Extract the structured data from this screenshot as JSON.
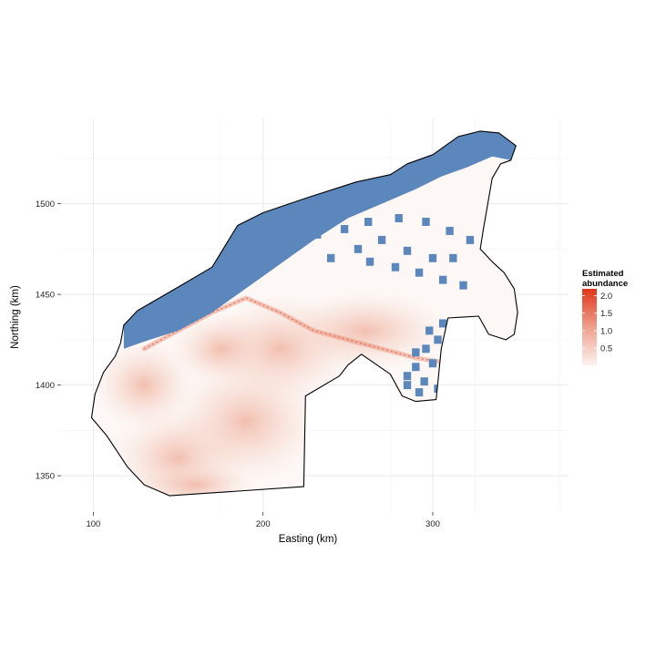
{
  "chart_data": {
    "type": "heatmap",
    "title": "",
    "xlabel": "Easting (km)",
    "ylabel": "Northing (km)",
    "xlim": [
      81,
      380
    ],
    "ylim": [
      1330,
      1547
    ],
    "x_ticks": [
      100,
      200,
      300
    ],
    "y_ticks": [
      1350,
      1400,
      1450,
      1500
    ],
    "x_tick_labels": [
      "100",
      "200",
      "300"
    ],
    "y_tick_labels": [
      "1350",
      "1400",
      "1450",
      "1500"
    ],
    "grid": true,
    "legend": {
      "title_line1": "Estimated",
      "title_line2": "abundance",
      "position": "right",
      "breaks": [
        2.0,
        1.5,
        1.0,
        0.5
      ],
      "labels": [
        "2.0",
        "1.5",
        "1.0",
        "0.5"
      ],
      "range": [
        0,
        2.2
      ],
      "low_color": "#fbf3f0",
      "high_color": "#e03519"
    },
    "no_data_color": "#5b87bc",
    "boundary_color": "#000000",
    "study_region_boundary": [
      [
        118,
        1433
      ],
      [
        126,
        1441
      ],
      [
        150,
        1454
      ],
      [
        170,
        1465
      ],
      [
        185,
        1488
      ],
      [
        200,
        1495
      ],
      [
        225,
        1503
      ],
      [
        255,
        1512
      ],
      [
        275,
        1516
      ],
      [
        285,
        1522
      ],
      [
        300,
        1527
      ],
      [
        315,
        1537
      ],
      [
        328,
        1540
      ],
      [
        339,
        1539
      ],
      [
        349,
        1532
      ],
      [
        346,
        1524
      ],
      [
        340,
        1522
      ],
      [
        335,
        1514
      ],
      [
        330,
        1487
      ],
      [
        328,
        1475
      ],
      [
        335,
        1468
      ],
      [
        342,
        1462
      ],
      [
        348,
        1453
      ],
      [
        350,
        1440
      ],
      [
        348,
        1428
      ],
      [
        343,
        1425
      ],
      [
        333,
        1428
      ],
      [
        327,
        1438
      ],
      [
        309,
        1437
      ],
      [
        305,
        1420
      ],
      [
        302,
        1392
      ],
      [
        290,
        1391
      ],
      [
        282,
        1394
      ],
      [
        275,
        1406
      ],
      [
        258,
        1417
      ],
      [
        250,
        1411
      ],
      [
        245,
        1405
      ],
      [
        225,
        1394
      ],
      [
        224,
        1344
      ],
      [
        145,
        1339
      ],
      [
        130,
        1345
      ],
      [
        120,
        1355
      ],
      [
        108,
        1372
      ],
      [
        99,
        1382
      ],
      [
        101,
        1395
      ],
      [
        106,
        1407
      ],
      [
        113,
        1416
      ],
      [
        116,
        1423
      ],
      [
        118,
        1433
      ]
    ],
    "high_abundance_ridge": [
      [
        130,
        1420
      ],
      [
        150,
        1430
      ],
      [
        170,
        1440
      ],
      [
        190,
        1448
      ],
      [
        210,
        1440
      ],
      [
        230,
        1430
      ],
      [
        250,
        1425
      ],
      [
        270,
        1420
      ],
      [
        290,
        1415
      ],
      [
        310,
        1412
      ]
    ],
    "no_data_zones": [
      {
        "region": "northwest coast",
        "polygon": [
          [
            118,
            1433
          ],
          [
            126,
            1441
          ],
          [
            150,
            1454
          ],
          [
            170,
            1465
          ],
          [
            185,
            1488
          ],
          [
            200,
            1495
          ],
          [
            225,
            1503
          ],
          [
            255,
            1512
          ],
          [
            275,
            1516
          ],
          [
            285,
            1522
          ],
          [
            300,
            1527
          ],
          [
            315,
            1537
          ],
          [
            328,
            1540
          ],
          [
            339,
            1539
          ],
          [
            349,
            1532
          ],
          [
            346,
            1524
          ],
          [
            335,
            1526
          ],
          [
            320,
            1520
          ],
          [
            305,
            1515
          ],
          [
            290,
            1508
          ],
          [
            270,
            1500
          ],
          [
            250,
            1492
          ],
          [
            230,
            1480
          ],
          [
            215,
            1470
          ],
          [
            200,
            1460
          ],
          [
            185,
            1450
          ],
          [
            170,
            1440
          ],
          [
            150,
            1430
          ],
          [
            130,
            1424
          ],
          [
            118,
            1420
          ]
        ]
      },
      {
        "region": "central scattered patches",
        "cells": [
          [
            232,
            1483
          ],
          [
            240,
            1470
          ],
          [
            248,
            1486
          ],
          [
            256,
            1475
          ],
          [
            263,
            1468
          ],
          [
            270,
            1480
          ],
          [
            278,
            1465
          ],
          [
            285,
            1474
          ],
          [
            292,
            1462
          ],
          [
            300,
            1470
          ],
          [
            306,
            1458
          ],
          [
            312,
            1470
          ],
          [
            318,
            1455
          ],
          [
            322,
            1480
          ],
          [
            310,
            1485
          ],
          [
            296,
            1490
          ],
          [
            280,
            1492
          ],
          [
            262,
            1490
          ],
          [
            248,
            1498
          ]
        ]
      },
      {
        "region": "southeast lobe",
        "cells": [
          [
            285,
            1405
          ],
          [
            290,
            1410
          ],
          [
            295,
            1402
          ],
          [
            300,
            1412
          ],
          [
            303,
            1398
          ],
          [
            292,
            1396
          ],
          [
            285,
            1400
          ],
          [
            296,
            1420
          ],
          [
            303,
            1425
          ],
          [
            306,
            1434
          ],
          [
            298,
            1430
          ],
          [
            290,
            1418
          ]
        ]
      }
    ]
  }
}
